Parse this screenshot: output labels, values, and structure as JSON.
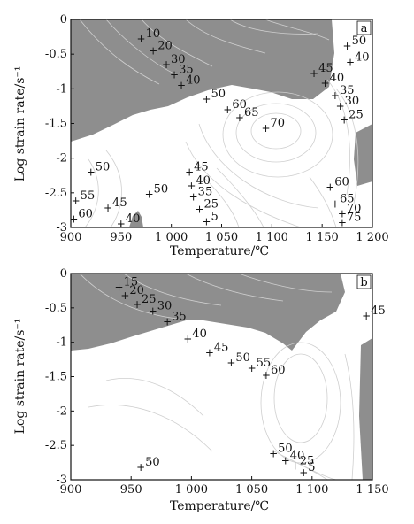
{
  "chart_data": [
    {
      "type": "contour",
      "panel_label": "a",
      "xlabel": "Temperature/℃",
      "ylabel": "Log strain rate/s⁻¹",
      "xlim": [
        900,
        1200
      ],
      "ylim": [
        -3,
        0
      ],
      "xticks": [
        "900",
        "950",
        "1 000",
        "1 050",
        "1 100",
        "1 150",
        "1 200"
      ],
      "yticks": [
        "0",
        "-0.5",
        "-1",
        "-1.5",
        "-2",
        "-2.5",
        "-3"
      ],
      "contour_labels": [
        {
          "label": "10",
          "x": 970,
          "y": -0.28
        },
        {
          "label": "20",
          "x": 982,
          "y": -0.45
        },
        {
          "label": "30",
          "x": 995,
          "y": -0.65
        },
        {
          "label": "35",
          "x": 1003,
          "y": -0.8
        },
        {
          "label": "40",
          "x": 1010,
          "y": -0.95
        },
        {
          "label": "50",
          "x": 1035,
          "y": -1.15
        },
        {
          "label": "60",
          "x": 1056,
          "y": -1.3
        },
        {
          "label": "65",
          "x": 1068,
          "y": -1.42
        },
        {
          "label": "70",
          "x": 1094,
          "y": -1.57
        },
        {
          "label": "45",
          "x": 1142,
          "y": -0.78
        },
        {
          "label": "40",
          "x": 1153,
          "y": -0.92
        },
        {
          "label": "35",
          "x": 1163,
          "y": -1.1
        },
        {
          "label": "30",
          "x": 1168,
          "y": -1.25
        },
        {
          "label": "25",
          "x": 1172,
          "y": -1.45
        },
        {
          "label": "50",
          "x": 1175,
          "y": -0.38
        },
        {
          "label": "40",
          "x": 1178,
          "y": -0.62
        },
        {
          "label": "50",
          "x": 920,
          "y": -2.2
        },
        {
          "label": "55",
          "x": 905,
          "y": -2.62
        },
        {
          "label": "60",
          "x": 903,
          "y": -2.88
        },
        {
          "label": "45",
          "x": 937,
          "y": -2.72
        },
        {
          "label": "40",
          "x": 950,
          "y": -2.95
        },
        {
          "label": "50",
          "x": 978,
          "y": -2.52
        },
        {
          "label": "45",
          "x": 1018,
          "y": -2.2
        },
        {
          "label": "40",
          "x": 1020,
          "y": -2.4
        },
        {
          "label": "35",
          "x": 1022,
          "y": -2.56
        },
        {
          "label": "25",
          "x": 1028,
          "y": -2.74
        },
        {
          "label": "5",
          "x": 1035,
          "y": -2.92
        },
        {
          "label": "60",
          "x": 1158,
          "y": -2.42
        },
        {
          "label": "65",
          "x": 1163,
          "y": -2.66
        },
        {
          "label": "70",
          "x": 1170,
          "y": -2.8
        },
        {
          "label": "75",
          "x": 1170,
          "y": -2.93
        }
      ],
      "instability_regions": "shaded",
      "grid": false
    },
    {
      "type": "contour",
      "panel_label": "b",
      "xlabel": "Temperature/℃",
      "ylabel": "Log strain rate/s⁻¹",
      "xlim": [
        900,
        1150
      ],
      "ylim": [
        -3,
        0
      ],
      "xticks": [
        "900",
        "950",
        "1 000",
        "1 050",
        "1 100",
        "1 150"
      ],
      "yticks": [
        "0",
        "-0.5",
        "-1",
        "-1.5",
        "-2",
        "-2.5",
        "-3"
      ],
      "contour_labels": [
        {
          "label": "15",
          "x": 940,
          "y": -0.2
        },
        {
          "label": "20",
          "x": 945,
          "y": -0.32
        },
        {
          "label": "25",
          "x": 955,
          "y": -0.45
        },
        {
          "label": "30",
          "x": 968,
          "y": -0.55
        },
        {
          "label": "35",
          "x": 980,
          "y": -0.7
        },
        {
          "label": "40",
          "x": 997,
          "y": -0.95
        },
        {
          "label": "45",
          "x": 1015,
          "y": -1.15
        },
        {
          "label": "50",
          "x": 1033,
          "y": -1.3
        },
        {
          "label": "55",
          "x": 1050,
          "y": -1.38
        },
        {
          "label": "60",
          "x": 1062,
          "y": -1.48
        },
        {
          "label": "45",
          "x": 1145,
          "y": -0.62
        },
        {
          "label": "50",
          "x": 1068,
          "y": -2.62
        },
        {
          "label": "40",
          "x": 1078,
          "y": -2.72
        },
        {
          "label": "25",
          "x": 1086,
          "y": -2.8
        },
        {
          "label": "5",
          "x": 1093,
          "y": -2.9
        },
        {
          "label": "50",
          "x": 958,
          "y": -2.82
        }
      ],
      "instability_regions": "shaded",
      "grid": false
    }
  ]
}
